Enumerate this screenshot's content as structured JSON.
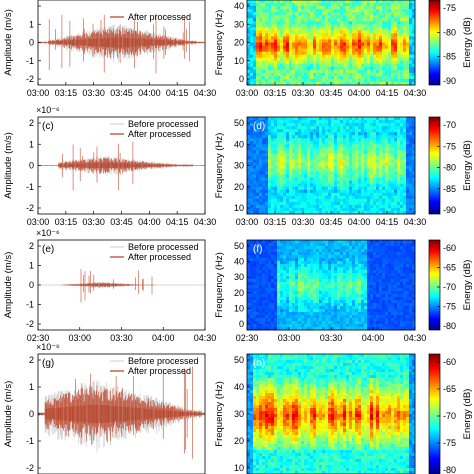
{
  "colors": {
    "before": "#d4d4d4",
    "after": "#c0391a",
    "after_dark": "#a12a10",
    "spec_bg": "#00007a"
  },
  "figure": {
    "rows": [
      {
        "wave_label": "",
        "spec_label": "",
        "legend": [
          "",
          "After processed"
        ],
        "exponent": "",
        "y_ticks": [
          "",
          "1",
          "0",
          "-1",
          "-2"
        ],
        "x_ticks": [
          "03:00",
          "03:15",
          "03:30",
          "03:45",
          "04:00",
          "04:15",
          "04:30"
        ],
        "freq_ticks": [
          "40",
          "30",
          "20",
          "10",
          "0"
        ],
        "colorbar_ticks": [
          "-75",
          "-80",
          "-85",
          "-90"
        ],
        "spec_x_ticks": [
          "03:00",
          "03:15",
          "03:30",
          "03:45",
          "04:00",
          "04:15",
          "04:30"
        ]
      },
      {
        "wave_label": "(c)",
        "spec_label": "(d)",
        "legend": [
          "Before processed",
          "After processed"
        ],
        "exponent": "×10⁻⁶",
        "y_ticks": [
          "2",
          "1",
          "0",
          "-1",
          "-2"
        ],
        "x_ticks": [
          "03:00",
          "03:15",
          "03:30",
          "03:45",
          "04:00",
          "04:15",
          "04:30"
        ],
        "freq_ticks": [
          "50",
          "40",
          "30",
          "20",
          "10"
        ],
        "colorbar_ticks": [
          "-70",
          "-75",
          "-80",
          "-85",
          "-90"
        ],
        "spec_x_ticks": [
          "03:00",
          "03:15",
          "03:30",
          "03:45",
          "04:00",
          "04:15",
          "04:30"
        ]
      },
      {
        "wave_label": "(e)",
        "spec_label": "(f)",
        "legend": [
          "Before processed",
          "After processed"
        ],
        "exponent": "×10⁻⁶",
        "y_ticks": [
          "2",
          "1",
          "0",
          "-1",
          "-2"
        ],
        "x_ticks": [
          "02:30",
          "03:00",
          "03:30",
          "04:00",
          "04:30"
        ],
        "freq_ticks": [
          "50",
          "40",
          "30",
          "20",
          "10",
          "0"
        ],
        "colorbar_ticks": [
          "-60",
          "-65",
          "-70",
          "-75",
          "-80"
        ],
        "spec_x_ticks": [
          "02:30",
          "03:00",
          "03:30",
          "04:00",
          "04:30"
        ]
      },
      {
        "wave_label": "(g)",
        "spec_label": "(h)",
        "legend": [
          "Before processed",
          "After processed"
        ],
        "exponent": "×10⁻⁶",
        "y_ticks": [
          "2",
          "1",
          "0",
          "-1",
          "-2"
        ],
        "x_ticks": [],
        "freq_ticks": [
          "50",
          "40",
          "30",
          "20",
          "10"
        ],
        "colorbar_ticks": [
          "-60",
          "-65",
          "-70",
          "-75",
          "-80"
        ],
        "spec_x_ticks": []
      }
    ],
    "amplitude_label": "Amplitude (m/s)",
    "frequency_label": "Frequency (Hz)",
    "energy_label": "Energy (dB)"
  },
  "chart_data": [
    {
      "type": "line",
      "title": "",
      "ylabel": "Amplitude (m/s)",
      "x_ticks": [
        "03:00",
        "03:15",
        "03:30",
        "03:45",
        "04:00",
        "04:15",
        "04:30"
      ],
      "series": [
        {
          "name": "After processed"
        }
      ]
    },
    {
      "type": "heatmap",
      "title": "",
      "ylabel": "Frequency (Hz)",
      "colorbar": "Energy (dB)",
      "x_ticks": [
        "03:00",
        "03:15",
        "03:30",
        "03:45",
        "04:00",
        "04:15",
        "04:30"
      ],
      "colorbar_ticks": [
        "-75",
        "-80",
        "-85",
        "-90"
      ]
    },
    {
      "type": "line",
      "title": "(c)",
      "ylabel": "Amplitude (m/s)",
      "y_ticks": [
        2,
        1,
        0,
        -1,
        -2
      ],
      "exponent": "×10⁻⁶",
      "x_ticks": [
        "03:00",
        "03:15",
        "03:30",
        "03:45",
        "04:00",
        "04:15",
        "04:30"
      ],
      "series": [
        {
          "name": "Before processed"
        },
        {
          "name": "After processed"
        }
      ]
    },
    {
      "type": "heatmap",
      "title": "(d)",
      "ylabel": "Frequency (Hz)",
      "colorbar": "Energy (dB)",
      "y_ticks": [
        50,
        40,
        30,
        20,
        10
      ],
      "x_ticks": [
        "03:00",
        "03:15",
        "03:30",
        "03:45",
        "04:00",
        "04:15",
        "04:30"
      ],
      "colorbar_ticks": [
        "-70",
        "-75",
        "-80",
        "-85",
        "-90"
      ]
    },
    {
      "type": "line",
      "title": "(e)",
      "ylabel": "Amplitude (m/s)",
      "y_ticks": [
        2,
        1,
        0,
        -1,
        -2
      ],
      "exponent": "×10⁻⁶",
      "x_ticks": [
        "02:30",
        "03:00",
        "03:30",
        "04:00",
        "04:30"
      ],
      "series": [
        {
          "name": "Before processed"
        },
        {
          "name": "After processed"
        }
      ]
    },
    {
      "type": "heatmap",
      "title": "(f)",
      "ylabel": "Frequency (Hz)",
      "colorbar": "Energy (dB)",
      "y_ticks": [
        50,
        40,
        30,
        20,
        10,
        0
      ],
      "x_ticks": [
        "02:30",
        "03:00",
        "03:30",
        "04:00",
        "04:30"
      ],
      "colorbar_ticks": [
        "-60",
        "-65",
        "-70",
        "-75",
        "-80"
      ]
    },
    {
      "type": "line",
      "title": "(g)",
      "ylabel": "Amplitude (m/s)",
      "y_ticks": [
        2,
        1,
        0,
        -1,
        -2
      ],
      "exponent": "×10⁻⁶",
      "series": [
        {
          "name": "Before processed"
        },
        {
          "name": "After processed"
        }
      ]
    },
    {
      "type": "heatmap",
      "title": "(h)",
      "ylabel": "Frequency (Hz)",
      "colorbar": "Energy (dB)",
      "y_ticks": [
        50,
        40,
        30,
        20,
        10
      ],
      "colorbar_ticks": [
        "-60",
        "-65",
        "-70",
        "-75",
        "-80"
      ]
    }
  ]
}
